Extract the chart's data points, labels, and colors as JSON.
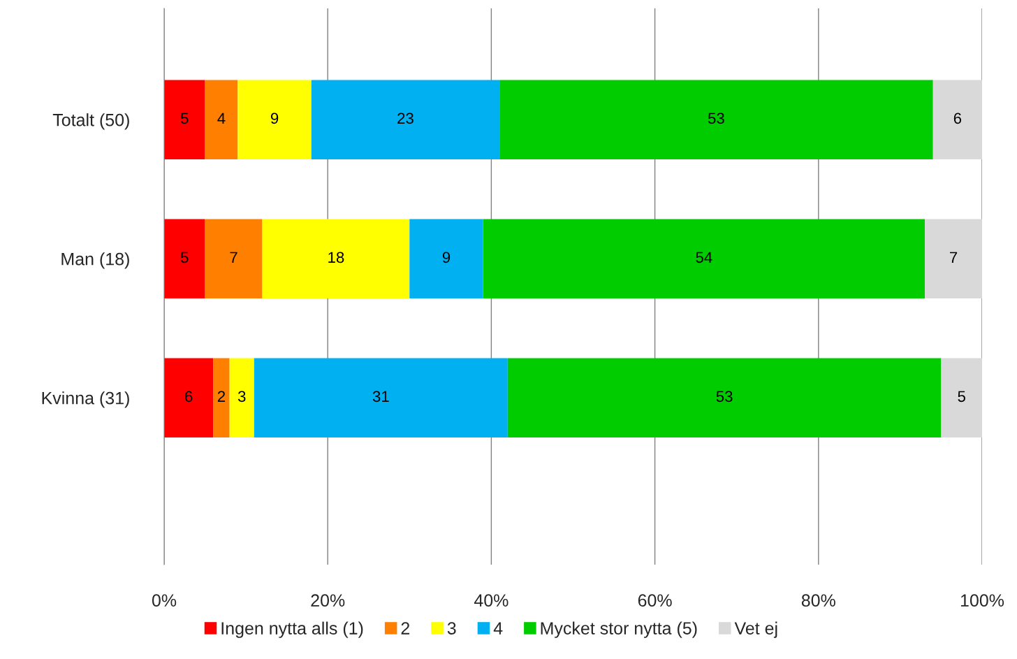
{
  "chart_data": {
    "type": "bar",
    "orientation": "horizontal",
    "stacked": true,
    "data_labels": true,
    "grid": "x",
    "legend": "bottom",
    "categories": [
      "Totalt (50)",
      "Man (18)",
      "Kvinna (31)"
    ],
    "series": [
      {
        "name": "Ingen nytta alls (1)",
        "color": "#ff0000",
        "values": [
          5,
          5,
          6
        ]
      },
      {
        "name": "2",
        "color": "#ff7f00",
        "values": [
          4,
          7,
          2
        ]
      },
      {
        "name": "3",
        "color": "#ffff00",
        "values": [
          9,
          18,
          3
        ]
      },
      {
        "name": "4",
        "color": "#00b0f0",
        "values": [
          23,
          9,
          31
        ]
      },
      {
        "name": "Mycket stor nytta (5)",
        "color": "#00cc00",
        "values": [
          53,
          54,
          53
        ]
      },
      {
        "name": "Vet ej",
        "color": "#d9d9d9",
        "values": [
          6,
          7,
          5
        ]
      }
    ],
    "xlim": [
      0,
      100
    ],
    "xticks": [
      {
        "value": 0,
        "label": "0%"
      },
      {
        "value": 20,
        "label": "20%"
      },
      {
        "value": 40,
        "label": "40%"
      },
      {
        "value": 60,
        "label": "60%"
      },
      {
        "value": 80,
        "label": "80%"
      },
      {
        "value": 100,
        "label": "100%"
      }
    ]
  }
}
